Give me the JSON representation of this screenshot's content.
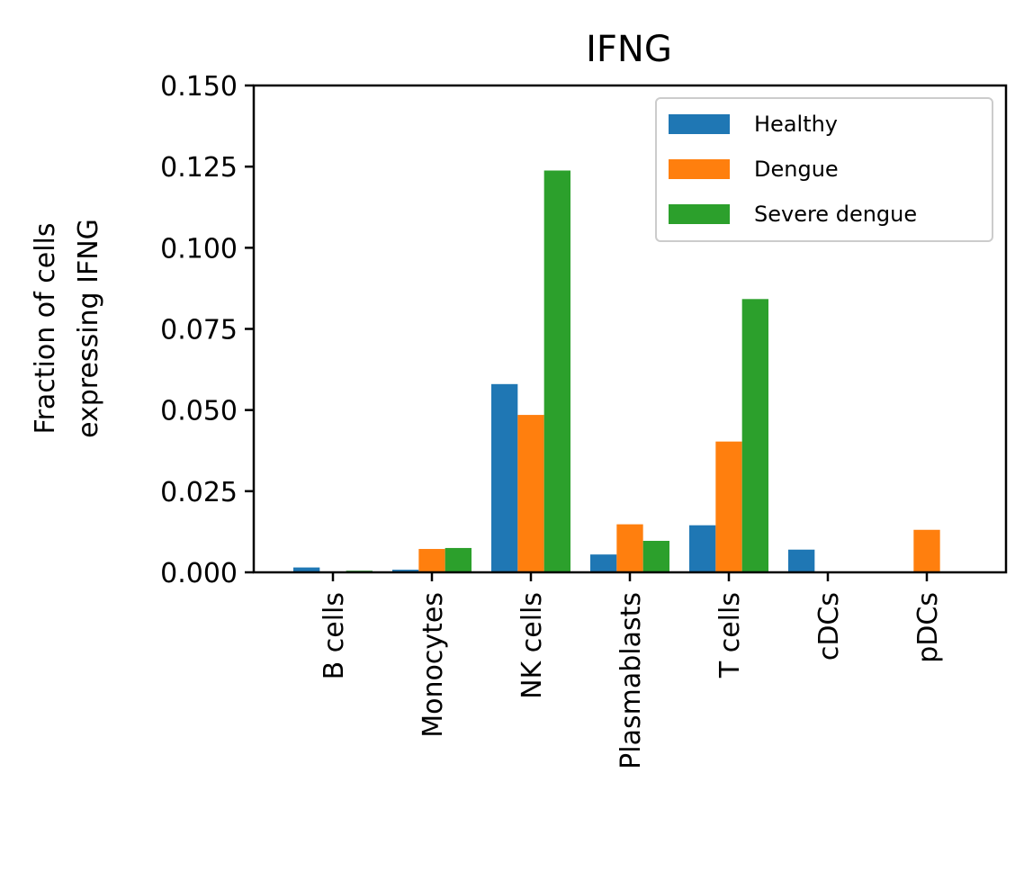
{
  "chart_data": {
    "type": "bar",
    "title": "IFNG",
    "xlabel": "",
    "ylabel": [
      "Fraction of cells",
      "expressing IFNG"
    ],
    "ylim": [
      0,
      0.15
    ],
    "yticks": [
      "0.000",
      "0.025",
      "0.050",
      "0.075",
      "0.100",
      "0.125",
      "0.150"
    ],
    "categories": [
      "B cells",
      "Monocytes",
      "NK cells",
      "Plasmablasts",
      "T cells",
      "cDCs",
      "pDCs"
    ],
    "series": [
      {
        "name": "Healthy",
        "color": "#1f77b4",
        "values": [
          0.0015,
          0.0008,
          0.058,
          0.0055,
          0.0145,
          0.007,
          0.0
        ]
      },
      {
        "name": "Dengue",
        "color": "#ff7f0e",
        "values": [
          0.0,
          0.0072,
          0.0485,
          0.0148,
          0.0403,
          0.0,
          0.0131
        ]
      },
      {
        "name": "Severe dengue",
        "color": "#2ca02c",
        "values": [
          0.0005,
          0.0075,
          0.1238,
          0.0097,
          0.0842,
          0.0,
          0.0
        ]
      }
    ],
    "legend": "top-right",
    "grid": false
  }
}
